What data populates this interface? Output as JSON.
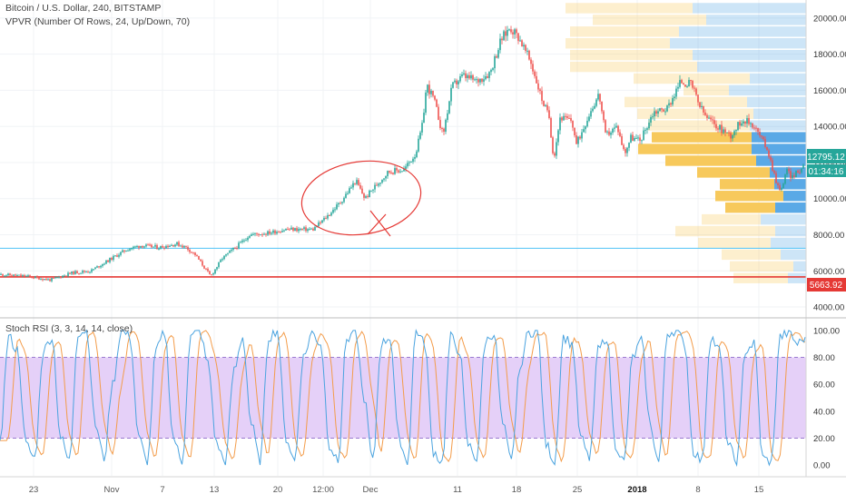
{
  "header": {
    "title": "Bitcoin / U.S. Dollar, 240, BITSTAMP",
    "indicator": "VPVR (Number Of Rows, 24, Up/Down, 70)"
  },
  "rsi_header": {
    "title": "Stoch RSI (3, 3, 14, 14, close)"
  },
  "badges": {
    "price": "12795.12",
    "countdown": "01:34:16",
    "support": "5663.92"
  },
  "colors": {
    "up_candle": "#26a69a",
    "down_candle": "#ef5350",
    "support_line": "#e53935",
    "price_badge": "#26a69a",
    "support_badge": "#e53935",
    "volume_up": "#5aa9e6",
    "volume_down": "#f7c95c",
    "k_line": "#4aa3df",
    "d_line": "#f39c4a",
    "rsi_band": "#e0c8f7",
    "annotation": "#e53935"
  },
  "chart_data": [
    {
      "type": "candlestick",
      "title": "Bitcoin / U.S. Dollar, 240, BITSTAMP",
      "ylim": [
        3500,
        21000
      ],
      "y_ticks": [
        "4000.00",
        "6000.00",
        "8000.00",
        "10000.00",
        "12000.00",
        "14000.00",
        "16000.00",
        "18000.00",
        "20000.00"
      ],
      "x_ticks": [
        "23",
        "Nov",
        "7",
        "13",
        "20",
        "12:00",
        "Dec",
        "11",
        "18",
        "25",
        "2018",
        "8",
        "15"
      ],
      "anchors": [
        [
          0,
          5800
        ],
        [
          30,
          5700
        ],
        [
          55,
          5500
        ],
        [
          80,
          5900
        ],
        [
          100,
          6000
        ],
        [
          120,
          6600
        ],
        [
          140,
          7200
        ],
        [
          155,
          7400
        ],
        [
          175,
          7300
        ],
        [
          195,
          7500
        ],
        [
          205,
          7300
        ],
        [
          215,
          6900
        ],
        [
          232,
          5700
        ],
        [
          245,
          6700
        ],
        [
          262,
          7400
        ],
        [
          275,
          8000
        ],
        [
          295,
          8100
        ],
        [
          315,
          8300
        ],
        [
          345,
          8300
        ],
        [
          360,
          9000
        ],
        [
          375,
          9800
        ],
        [
          392,
          11000
        ],
        [
          402,
          10000
        ],
        [
          410,
          10500
        ],
        [
          428,
          11500
        ],
        [
          445,
          11600
        ],
        [
          458,
          12500
        ],
        [
          465,
          14000
        ],
        [
          470,
          16300
        ],
        [
          478,
          15500
        ],
        [
          488,
          13500
        ],
        [
          498,
          16200
        ],
        [
          510,
          16800
        ],
        [
          525,
          16500
        ],
        [
          540,
          17000
        ],
        [
          552,
          18800
        ],
        [
          562,
          19500
        ],
        [
          572,
          18900
        ],
        [
          585,
          17500
        ],
        [
          597,
          15500
        ],
        [
          605,
          14500
        ],
        [
          610,
          12200
        ],
        [
          617,
          14500
        ],
        [
          630,
          14300
        ],
        [
          635,
          13000
        ],
        [
          650,
          14800
        ],
        [
          660,
          15800
        ],
        [
          667,
          13500
        ],
        [
          680,
          14000
        ],
        [
          688,
          12500
        ],
        [
          695,
          13400
        ],
        [
          705,
          13200
        ],
        [
          720,
          14800
        ],
        [
          735,
          15000
        ],
        [
          750,
          16500
        ],
        [
          762,
          16300
        ],
        [
          770,
          15200
        ],
        [
          778,
          14500
        ],
        [
          790,
          14000
        ],
        [
          805,
          13500
        ],
        [
          818,
          14400
        ],
        [
          830,
          14100
        ],
        [
          845,
          12800
        ],
        [
          855,
          11000
        ],
        [
          860,
          10300
        ],
        [
          866,
          11600
        ],
        [
          872,
          11200
        ],
        [
          880,
          11500
        ],
        [
          887,
          12000
        ]
      ],
      "horizontal_levels": [
        5663.92,
        7250
      ]
    },
    {
      "type": "bar",
      "title": "VPVR (Number Of Rows, 24, Up/Down, 70)",
      "orientation": "horizontal",
      "series": [
        {
          "name": "Up",
          "values": [
            20,
            14,
            28,
            39,
            34,
            50,
            34,
            25,
            35,
            40,
            55,
            60,
            60,
            62,
            58,
            65,
            85,
            62,
            120,
            125,
            150,
            140,
            110,
            125
          ]
        },
        {
          "name": "Down",
          "values": [
            60,
            70,
            65,
            80,
            110,
            65,
            55,
            75,
            60,
            80,
            100,
            125,
            110,
            112,
            128,
            135,
            50,
            128,
            140,
            135,
            115,
            120,
            125,
            140
          ]
        }
      ],
      "row_prices": [
        5600,
        6250,
        6900,
        7550,
        8200,
        8850,
        9500,
        10150,
        10800,
        11450,
        12100,
        12750,
        13400,
        14050,
        14700,
        15350,
        16000,
        16650,
        17300,
        17950,
        18600,
        19250,
        19900,
        20550
      ],
      "highlighted": [
        false,
        false,
        false,
        false,
        false,
        false,
        true,
        true,
        true,
        true,
        true,
        true,
        true,
        false,
        false,
        false,
        false,
        false,
        false,
        false,
        false,
        false,
        false,
        false
      ]
    },
    {
      "type": "line",
      "title": "Stoch RSI (3, 3, 14, 14, close)",
      "ylim": [
        -8,
        108
      ],
      "y_ticks": [
        "0.00",
        "20.00",
        "40.00",
        "60.00",
        "80.00",
        "100.00"
      ],
      "band": [
        20,
        80
      ],
      "k": [
        20,
        95,
        85,
        15,
        5,
        85,
        95,
        20,
        3,
        98,
        100,
        30,
        5,
        60,
        100,
        95,
        20,
        2,
        85,
        98,
        20,
        2,
        95,
        100,
        75,
        15,
        2,
        70,
        95,
        30,
        2,
        95,
        100,
        20,
        3,
        80,
        98,
        90,
        15,
        2,
        95,
        100,
        50,
        2,
        90,
        95,
        20,
        2,
        100,
        90,
        10,
        2,
        95,
        85,
        15,
        5,
        92,
        98,
        30,
        2,
        75,
        98,
        100,
        15,
        3,
        95,
        90,
        20,
        5,
        85,
        95,
        15,
        2,
        80,
        92,
        30,
        2,
        98,
        100,
        90,
        10,
        3,
        95,
        85,
        15,
        2,
        85,
        90,
        5,
        2,
        95,
        98,
        90,
        95
      ],
      "d_lag": 3
    }
  ]
}
